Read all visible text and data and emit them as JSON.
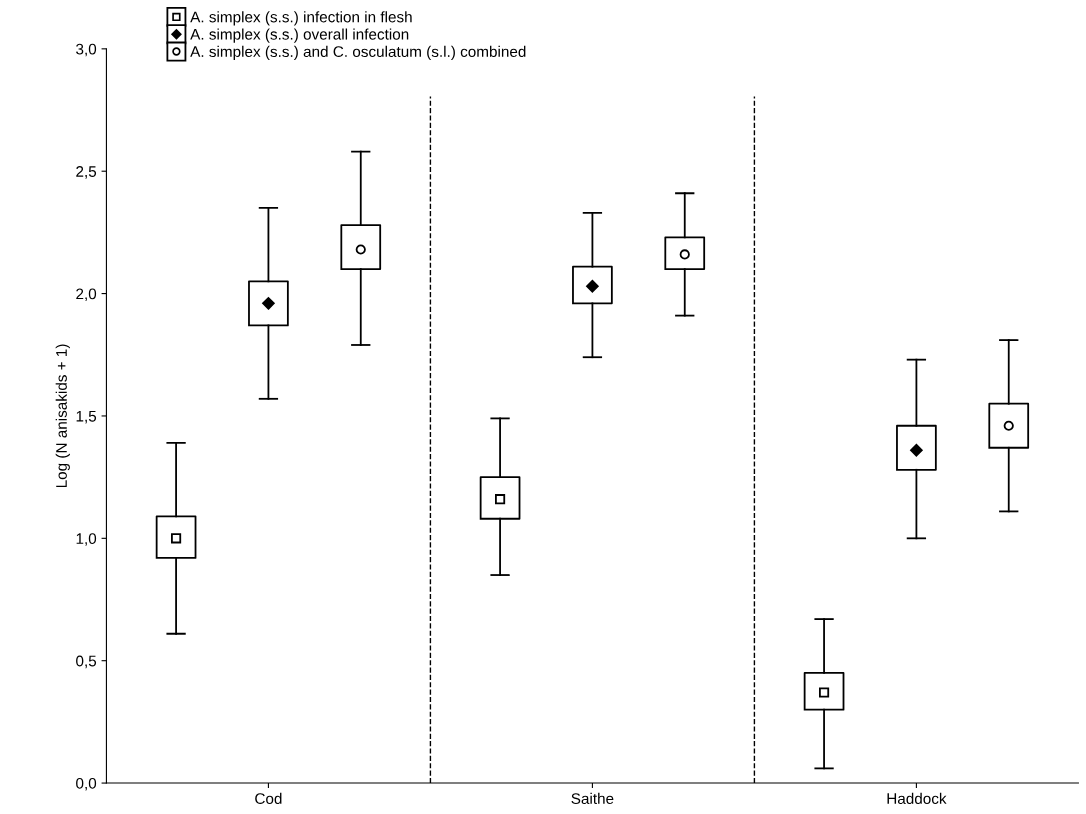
{
  "chart_data": {
    "type": "box",
    "ylabel": "Log (N anisakids + 1)",
    "categories": [
      "Cod",
      "Saithe",
      "Haddock"
    ],
    "ylim": [
      0,
      3
    ],
    "yticks": [
      {
        "value": 0,
        "label": "0,0"
      },
      {
        "value": 0.5,
        "label": "0,5"
      },
      {
        "value": 1,
        "label": "1,0"
      },
      {
        "value": 1.5,
        "label": "1,5"
      },
      {
        "value": 2,
        "label": "2,0"
      },
      {
        "value": 2.5,
        "label": "2,5"
      },
      {
        "value": 3,
        "label": "3,0"
      }
    ],
    "grid": false,
    "legend": "top left",
    "series": [
      {
        "name": "A. simplex (s.s.) infection in flesh",
        "color": "#000000",
        "marker": "square",
        "boxes": [
          {
            "low": 0.61,
            "q1": 0.92,
            "median": 1.0,
            "q3": 1.09,
            "high": 1.39
          },
          {
            "low": 0.85,
            "q1": 1.08,
            "median": 1.16,
            "q3": 1.25,
            "high": 1.49
          },
          {
            "low": 0.06,
            "q1": 0.3,
            "median": 0.37,
            "q3": 0.45,
            "high": 0.67
          }
        ]
      },
      {
        "name": "A. simplex (s.s.) overall infection",
        "color": "#000000",
        "marker": "diamond",
        "boxes": [
          {
            "low": 1.57,
            "q1": 1.87,
            "median": 1.96,
            "q3": 2.05,
            "high": 2.35
          },
          {
            "low": 1.74,
            "q1": 1.96,
            "median": 2.03,
            "q3": 2.11,
            "high": 2.33
          },
          {
            "low": 1.0,
            "q1": 1.28,
            "median": 1.36,
            "q3": 1.46,
            "high": 1.73
          }
        ]
      },
      {
        "name": "A. simplex (s.s.) and C. osculatum (s.l.) combined",
        "color": "#000000",
        "marker": "circle",
        "boxes": [
          {
            "low": 1.79,
            "q1": 2.1,
            "median": 2.18,
            "q3": 2.28,
            "high": 2.58
          },
          {
            "low": 1.91,
            "q1": 2.1,
            "median": 2.16,
            "q3": 2.23,
            "high": 2.41
          },
          {
            "low": 1.11,
            "q1": 1.37,
            "median": 1.46,
            "q3": 1.55,
            "high": 1.81
          }
        ]
      }
    ]
  }
}
